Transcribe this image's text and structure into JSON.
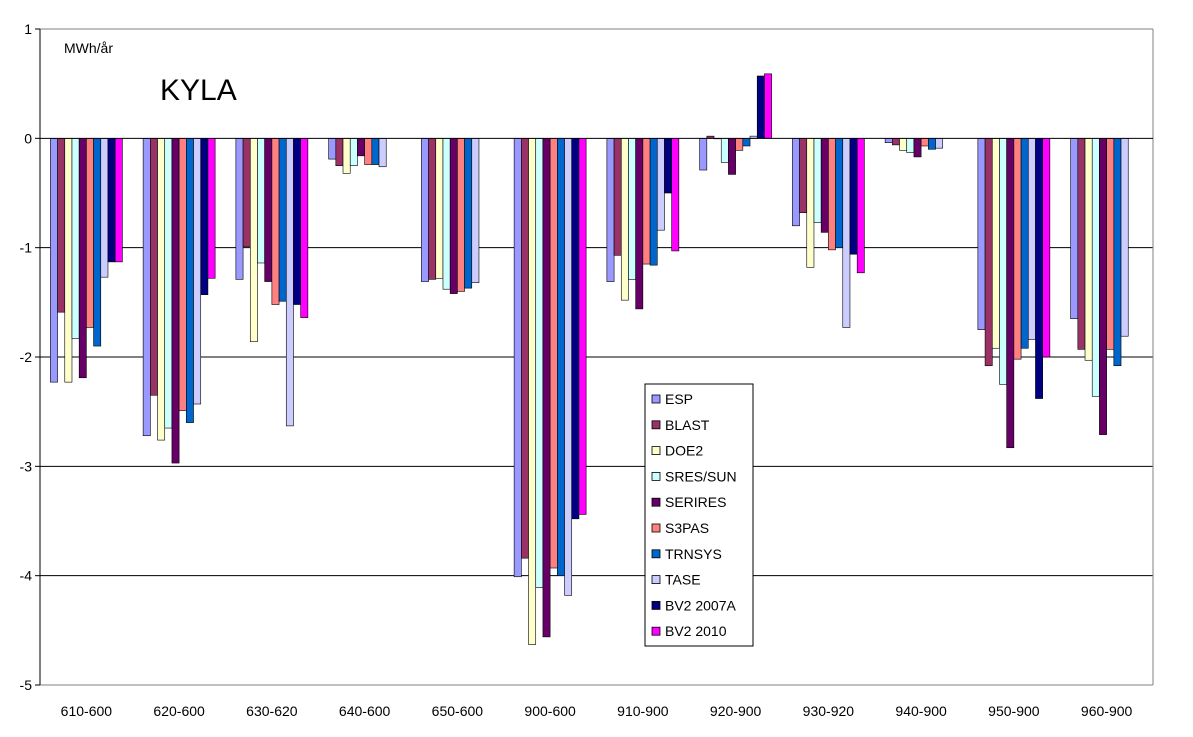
{
  "chart_data": {
    "type": "bar",
    "title": "KYLA",
    "unit_label": "MWh/år",
    "ylim": [
      -5,
      1
    ],
    "yticks": [
      1,
      0,
      -1,
      -2,
      -3,
      -4,
      -5
    ],
    "grid": true,
    "legend_position": "center-bottom",
    "categories": [
      "610-600",
      "620-600",
      "630-620",
      "640-600",
      "650-600",
      "900-600",
      "910-900",
      "920-900",
      "930-920",
      "940-900",
      "950-900",
      "960-900"
    ],
    "series": [
      {
        "name": "ESP",
        "color": "#9999ff",
        "values": [
          -2.23,
          -2.72,
          -1.29,
          -0.19,
          -1.31,
          -4.01,
          -1.31,
          -0.29,
          -0.8,
          -0.04,
          -1.75,
          -1.65
        ]
      },
      {
        "name": "BLAST",
        "color": "#993366",
        "values": [
          -1.59,
          -2.35,
          -0.99,
          -0.25,
          -1.29,
          -3.84,
          -1.07,
          0.02,
          -0.68,
          -0.06,
          -2.08,
          -1.93
        ]
      },
      {
        "name": "DOE2",
        "color": "#ffffcc",
        "values": [
          -2.23,
          -2.76,
          -1.86,
          -0.32,
          -1.28,
          -4.63,
          -1.48,
          0.0,
          -1.18,
          -0.11,
          -1.92,
          -2.03
        ]
      },
      {
        "name": "SRES/SUN",
        "color": "#ccffff",
        "values": [
          -1.83,
          -2.65,
          -1.14,
          -0.25,
          -1.38,
          -4.11,
          -1.29,
          -0.22,
          -0.77,
          -0.13,
          -2.25,
          -2.36
        ]
      },
      {
        "name": "SERIRES",
        "color": "#660066",
        "values": [
          -2.19,
          -2.97,
          -1.31,
          -0.16,
          -1.42,
          -4.56,
          -1.56,
          -0.33,
          -0.86,
          -0.17,
          -2.83,
          -2.71
        ]
      },
      {
        "name": "S3PAS",
        "color": "#ff8080",
        "values": [
          -1.73,
          -2.49,
          -1.52,
          -0.24,
          -1.4,
          -3.93,
          -1.15,
          -0.11,
          -1.02,
          -0.07,
          -2.02,
          -1.93
        ]
      },
      {
        "name": "TRNSYS",
        "color": "#0066cc",
        "values": [
          -1.9,
          -2.6,
          -1.49,
          -0.24,
          -1.37,
          -4.0,
          -1.16,
          -0.07,
          -1.0,
          -0.1,
          -1.92,
          -2.08
        ]
      },
      {
        "name": "TASE",
        "color": "#ccccff",
        "values": [
          -1.27,
          -2.43,
          -2.63,
          -0.26,
          -1.32,
          -4.18,
          -0.84,
          0.02,
          -1.73,
          -0.09,
          -1.84,
          -1.81
        ]
      },
      {
        "name": "BV2 2007A",
        "color": "#000080",
        "values": [
          -1.13,
          -1.43,
          -1.52,
          null,
          null,
          -3.48,
          -0.5,
          0.57,
          -1.06,
          null,
          -2.38,
          null
        ]
      },
      {
        "name": "BV2 2010",
        "color": "#ff00ff",
        "values": [
          -1.13,
          -1.28,
          -1.64,
          null,
          null,
          -3.44,
          -1.03,
          0.59,
          -1.23,
          null,
          -2.0,
          null
        ]
      }
    ]
  }
}
